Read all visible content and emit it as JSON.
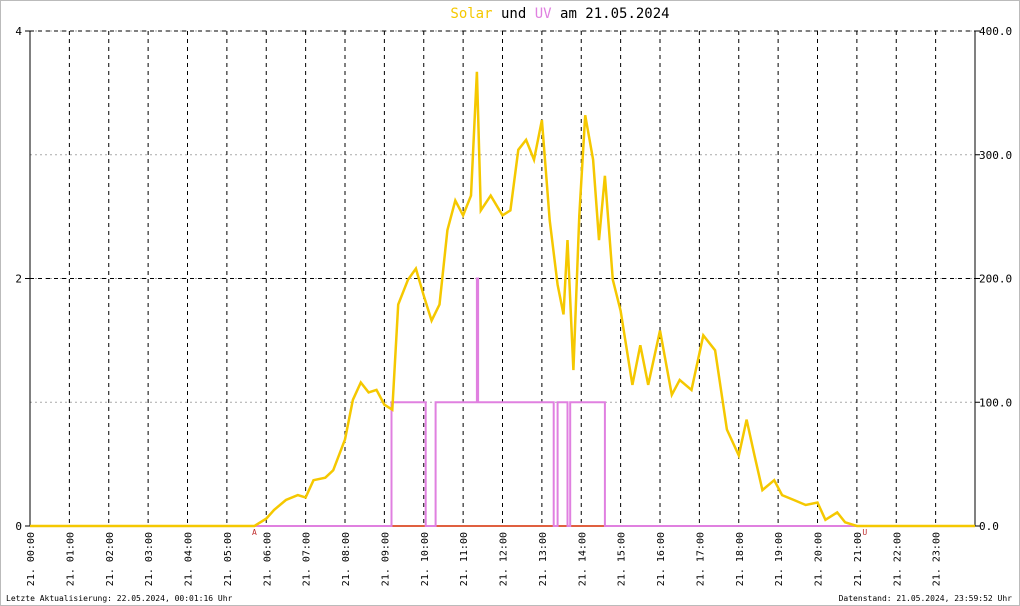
{
  "chart_data": {
    "type": "line",
    "title_connector": "und",
    "title_suffix": "am 21.05.2024",
    "xlim": [
      0,
      24
    ],
    "xticks": [
      {
        "value": 0,
        "label": "21. 00:00"
      },
      {
        "value": 1,
        "label": "21. 01:00"
      },
      {
        "value": 2,
        "label": "21. 02:00"
      },
      {
        "value": 3,
        "label": "21. 03:00"
      },
      {
        "value": 4,
        "label": "21. 04:00"
      },
      {
        "value": 5,
        "label": "21. 05:00"
      },
      {
        "value": 6,
        "label": "21. 06:00"
      },
      {
        "value": 7,
        "label": "21. 07:00"
      },
      {
        "value": 8,
        "label": "21. 08:00"
      },
      {
        "value": 9,
        "label": "21. 09:00"
      },
      {
        "value": 10,
        "label": "21. 10:00"
      },
      {
        "value": 11,
        "label": "21. 11:00"
      },
      {
        "value": 12,
        "label": "21. 12:00"
      },
      {
        "value": 13,
        "label": "21. 13:00"
      },
      {
        "value": 14,
        "label": "21. 14:00"
      },
      {
        "value": 15,
        "label": "21. 15:00"
      },
      {
        "value": 16,
        "label": "21. 16:00"
      },
      {
        "value": 17,
        "label": "21. 17:00"
      },
      {
        "value": 18,
        "label": "21. 18:00"
      },
      {
        "value": 19,
        "label": "21. 19:00"
      },
      {
        "value": 20,
        "label": "21. 20:00"
      },
      {
        "value": 21,
        "label": "21. 21:00"
      },
      {
        "value": 22,
        "label": "21. 22:00"
      },
      {
        "value": 23,
        "label": "21. 23:00"
      }
    ],
    "ylim": [
      0,
      4
    ],
    "yticks": [
      0,
      2,
      4
    ],
    "y2lim": [
      0,
      400
    ],
    "y2ticks": [
      {
        "value": 0,
        "label": "0.0"
      },
      {
        "value": 100,
        "label": "100.0"
      },
      {
        "value": 200,
        "label": "200.0"
      },
      {
        "value": 300,
        "label": "300.0"
      },
      {
        "value": 400,
        "label": "400.0"
      }
    ],
    "grid": true,
    "series": [
      {
        "name": "Solar",
        "color": "#f5c800",
        "axis": "y2",
        "x": [
          0,
          5.7,
          6.0,
          6.2,
          6.5,
          6.8,
          7.0,
          7.2,
          7.5,
          7.7,
          8.0,
          8.2,
          8.4,
          8.6,
          8.8,
          9.0,
          9.2,
          9.35,
          9.6,
          9.8,
          10.0,
          10.2,
          10.4,
          10.6,
          10.8,
          11.0,
          11.2,
          11.35,
          11.45,
          11.7,
          12.0,
          12.2,
          12.4,
          12.6,
          12.8,
          13.0,
          13.2,
          13.4,
          13.55,
          13.65,
          13.8,
          13.95,
          14.1,
          14.3,
          14.45,
          14.6,
          14.8,
          15.0,
          15.3,
          15.5,
          15.7,
          16.0,
          16.3,
          16.5,
          16.8,
          17.1,
          17.4,
          17.7,
          18.0,
          18.2,
          18.4,
          18.6,
          18.9,
          19.1,
          19.4,
          19.7,
          20.0,
          20.2,
          20.5,
          20.7,
          21.0,
          24
        ],
        "values": [
          0,
          0,
          6,
          13,
          21,
          25,
          23,
          37,
          39,
          45,
          70,
          102,
          116,
          108,
          110,
          98,
          94,
          179,
          199,
          208,
          186,
          166,
          179,
          239,
          263,
          251,
          267,
          367,
          255,
          267,
          251,
          255,
          304,
          312,
          296,
          328,
          247,
          195,
          171,
          231,
          126,
          251,
          332,
          296,
          231,
          283,
          199,
          174,
          114,
          146,
          114,
          158,
          106,
          118,
          110,
          154,
          142,
          78,
          57,
          86,
          57,
          29,
          37,
          25,
          21,
          17,
          19,
          5,
          11,
          3,
          0,
          0
        ]
      },
      {
        "name": "UV",
        "color": "#e080e0",
        "axis": "y",
        "x": [
          0,
          9.18,
          9.18,
          10.05,
          10.05,
          10.3,
          10.3,
          11.35,
          11.35,
          11.38,
          11.38,
          13.3,
          13.3,
          13.4,
          13.4,
          13.65,
          13.65,
          13.72,
          13.72,
          14.6,
          14.6,
          24
        ],
        "values": [
          0,
          0,
          1,
          1,
          0,
          0,
          1,
          1,
          2,
          2,
          1,
          1,
          0,
          0,
          1,
          1,
          0,
          0,
          1,
          1,
          0,
          0
        ]
      }
    ],
    "annotations": [
      {
        "text": "A",
        "x": 5.7
      },
      {
        "text": "U",
        "x": 21.2
      }
    ],
    "footer_left": "Letzte Aktualisierung: 22.05.2024, 00:01:16 Uhr",
    "footer_right": "Datenstand: 21.05.2024, 23:59:52 Uhr"
  }
}
